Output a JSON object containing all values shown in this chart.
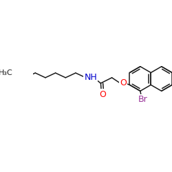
{
  "bg_color": "#ffffff",
  "bond_color": "#1a1a1a",
  "O_color": "#ff0000",
  "N_color": "#0000cc",
  "Br_color": "#993399",
  "line_width": 1.1,
  "figsize": [
    2.5,
    2.5
  ],
  "dpi": 100,
  "xlim": [
    0,
    250
  ],
  "ylim": [
    0,
    250
  ],
  "ring_r": 22,
  "font_size": 9,
  "font_size_small": 8
}
